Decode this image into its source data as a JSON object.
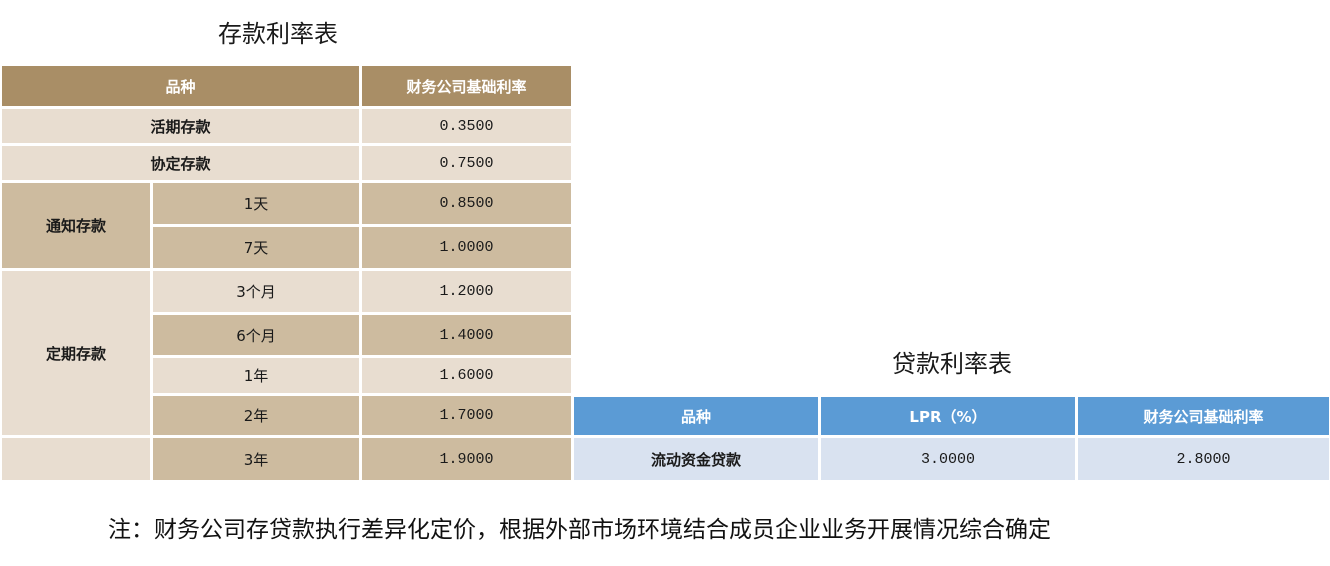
{
  "deposit": {
    "title": "存款利率表",
    "headers": [
      "品种",
      "财务公司基础利率"
    ],
    "rows": {
      "demand": {
        "name": "活期存款",
        "rate": "0.3500"
      },
      "agreement": {
        "name": "协定存款",
        "rate": "0.7500"
      },
      "notice": {
        "name": "通知存款",
        "items": [
          {
            "term": "1天",
            "rate": "0.8500"
          },
          {
            "term": "7天",
            "rate": "1.0000"
          }
        ]
      },
      "fixed": {
        "name": "定期存款",
        "items": [
          {
            "term": "3个月",
            "rate": "1.2000"
          },
          {
            "term": "6个月",
            "rate": "1.4000"
          },
          {
            "term": "1年",
            "rate": "1.6000"
          },
          {
            "term": "2年",
            "rate": "1.7000"
          },
          {
            "term": "3年",
            "rate": "1.9000"
          }
        ]
      }
    }
  },
  "loan": {
    "title": "贷款利率表",
    "headers": [
      "品种",
      "LPR（%）",
      "财务公司基础利率"
    ],
    "rows": [
      {
        "name": "流动资金贷款",
        "lpr": "3.0000",
        "rate": "2.8000"
      }
    ]
  },
  "footnote": "注：财务公司存贷款执行差异化定价，根据外部市场环境结合成员企业业务开展情况综合确定"
}
